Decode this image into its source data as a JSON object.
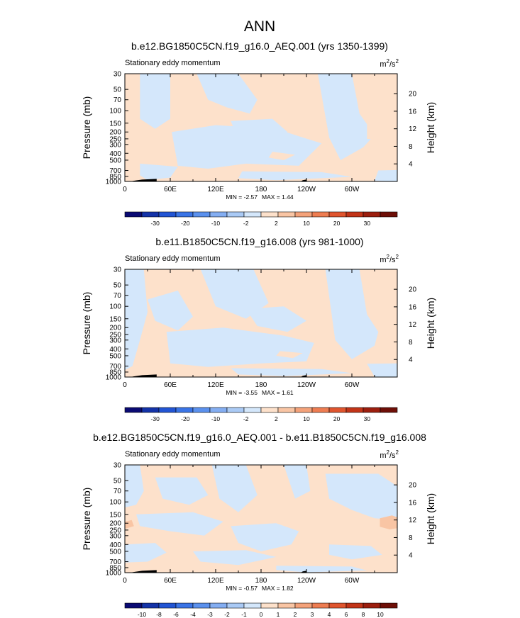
{
  "page_title": "ANN",
  "chart_data": [
    {
      "type": "heatmap",
      "title": "b.e12.BG1850C5CN.f19_g16.0_AEQ.001 (yrs 1350-1399)",
      "left_string": "Stationary eddy momentum",
      "units": {
        "base": "m",
        "sup1": "2",
        "mid": "/s",
        "sup2": "2"
      },
      "ylabel": "Pressure (mb)",
      "ylabel_right": "Height (km)",
      "x_ticks": [
        "0",
        "60E",
        "120E",
        "180",
        "120W",
        "60W"
      ],
      "x_tick_lon": [
        0,
        60,
        120,
        180,
        240,
        300
      ],
      "xlim": [
        0,
        360
      ],
      "y_ticks": [
        "30",
        "50",
        "70",
        "100",
        "150",
        "200",
        "250",
        "300",
        "400",
        "500",
        "700",
        "850",
        "1000"
      ],
      "y_tick_p": [
        30,
        50,
        70,
        100,
        150,
        200,
        250,
        300,
        400,
        500,
        700,
        850,
        1000
      ],
      "ylim": [
        30,
        1000
      ],
      "height_ticks": [
        "20",
        "16",
        "12",
        "8",
        "4"
      ],
      "height_tick_km": [
        20,
        16,
        12,
        8,
        4
      ],
      "min": "-2.57",
      "max": "1.44",
      "stats_text": {
        "min_label": "MIN = ",
        "min": "-2.57",
        "max_label": "MAX = ",
        "max": "1.44"
      },
      "colorbar_labels": [
        "-30",
        "-20",
        "-10",
        "-2",
        "2",
        "10",
        "20",
        "30"
      ],
      "colors": [
        "#0a0a73",
        "#1433a8",
        "#2255d4",
        "#3a74e6",
        "#5b91ee",
        "#84aef2",
        "#aacaf5",
        "#d4e7fb",
        "#fde1cb",
        "#f9c5a4",
        "#f4a27a",
        "#ee7d52",
        "#e0552e",
        "#c23418",
        "#9c1e0e",
        "#6e0f07"
      ],
      "cool_fill": "#d4e7fb",
      "warm_fill": "#fde1cb",
      "terrain": [
        {
          "lon": [
            10,
            42
          ],
          "p": 940
        },
        {
          "lon": [
            232,
            240
          ],
          "p": 960
        }
      ],
      "blobs_cool": [
        [
          [
            20,
            30
          ],
          [
            60,
            30
          ],
          [
            60,
            130
          ],
          [
            40,
            180
          ],
          [
            20,
            130
          ]
        ],
        [
          [
            62,
            200
          ],
          [
            120,
            160
          ],
          [
            200,
            180
          ],
          [
            230,
            230
          ],
          [
            260,
            290
          ],
          [
            230,
            600
          ],
          [
            160,
            560
          ],
          [
            110,
            660
          ],
          [
            70,
            600
          ]
        ],
        [
          [
            95,
            30
          ],
          [
            150,
            30
          ],
          [
            175,
            70
          ],
          [
            165,
            110
          ],
          [
            135,
            90
          ],
          [
            110,
            70
          ]
        ],
        [
          [
            140,
            140
          ],
          [
            195,
            130
          ],
          [
            215,
            200
          ],
          [
            175,
            240
          ],
          [
            145,
            190
          ]
        ],
        [
          [
            255,
            30
          ],
          [
            300,
            30
          ],
          [
            310,
            110
          ],
          [
            330,
            220
          ],
          [
            315,
            330
          ],
          [
            285,
            500
          ],
          [
            270,
            240
          ]
        ],
        [
          [
            155,
            720
          ],
          [
            260,
            740
          ],
          [
            300,
            860
          ],
          [
            200,
            960
          ],
          [
            150,
            900
          ]
        ],
        [
          [
            20,
            560
          ],
          [
            70,
            620
          ],
          [
            60,
            880
          ],
          [
            30,
            960
          ],
          [
            20,
            820
          ]
        ],
        [
          [
            335,
            700
          ],
          [
            360,
            690
          ],
          [
            360,
            1000
          ],
          [
            330,
            980
          ]
        ]
      ],
      "blobs_warm": [
        [
          [
            230,
            60
          ],
          [
            250,
            90
          ],
          [
            240,
            130
          ],
          [
            225,
            110
          ]
        ],
        [
          [
            195,
            380
          ],
          [
            225,
            420
          ],
          [
            210,
            500
          ],
          [
            190,
            460
          ]
        ],
        [
          [
            320,
            140
          ],
          [
            345,
            160
          ],
          [
            345,
            260
          ],
          [
            320,
            250
          ]
        ]
      ]
    },
    {
      "type": "heatmap",
      "title": "b.e11.B1850C5CN.f19_g16.008 (yrs 981-1000)",
      "left_string": "Stationary eddy momentum",
      "units": {
        "base": "m",
        "sup1": "2",
        "mid": "/s",
        "sup2": "2"
      },
      "ylabel": "Pressure (mb)",
      "ylabel_right": "Height (km)",
      "x_ticks": [
        "0",
        "60E",
        "120E",
        "180",
        "120W",
        "60W"
      ],
      "x_tick_lon": [
        0,
        60,
        120,
        180,
        240,
        300
      ],
      "xlim": [
        0,
        360
      ],
      "y_ticks": [
        "30",
        "50",
        "70",
        "100",
        "150",
        "200",
        "250",
        "300",
        "400",
        "500",
        "700",
        "850",
        "1000"
      ],
      "y_tick_p": [
        30,
        50,
        70,
        100,
        150,
        200,
        250,
        300,
        400,
        500,
        700,
        850,
        1000
      ],
      "ylim": [
        30,
        1000
      ],
      "height_ticks": [
        "20",
        "16",
        "12",
        "8",
        "4"
      ],
      "height_tick_km": [
        20,
        16,
        12,
        8,
        4
      ],
      "min": "-3.55",
      "max": "1.61",
      "stats_text": {
        "min_label": "MIN = ",
        "min": "-3.55",
        "max_label": "MAX = ",
        "max": "1.61"
      },
      "colorbar_labels": [
        "-30",
        "-20",
        "-10",
        "-2",
        "2",
        "10",
        "20",
        "30"
      ],
      "colors": [
        "#0a0a73",
        "#1433a8",
        "#2255d4",
        "#3a74e6",
        "#5b91ee",
        "#84aef2",
        "#aacaf5",
        "#d4e7fb",
        "#fde1cb",
        "#f9c5a4",
        "#f4a27a",
        "#ee7d52",
        "#e0552e",
        "#c23418",
        "#9c1e0e",
        "#6e0f07"
      ],
      "cool_fill": "#d4e7fb",
      "warm_fill": "#fde1cb",
      "terrain": [
        {
          "lon": [
            10,
            42
          ],
          "p": 940
        },
        {
          "lon": [
            232,
            240
          ],
          "p": 960
        }
      ],
      "blobs_cool": [
        [
          [
            0,
            30
          ],
          [
            25,
            30
          ],
          [
            30,
            120
          ],
          [
            20,
            300
          ],
          [
            10,
            700
          ],
          [
            0,
            800
          ]
        ],
        [
          [
            30,
            80
          ],
          [
            70,
            60
          ],
          [
            90,
            140
          ],
          [
            70,
            220
          ],
          [
            40,
            160
          ]
        ],
        [
          [
            100,
            30
          ],
          [
            170,
            30
          ],
          [
            190,
            90
          ],
          [
            160,
            150
          ],
          [
            120,
            100
          ]
        ],
        [
          [
            55,
            230
          ],
          [
            130,
            200
          ],
          [
            210,
            260
          ],
          [
            250,
            330
          ],
          [
            240,
            600
          ],
          [
            180,
            640
          ],
          [
            110,
            720
          ],
          [
            60,
            640
          ]
        ],
        [
          [
            160,
            110
          ],
          [
            210,
            100
          ],
          [
            240,
            160
          ],
          [
            215,
            230
          ],
          [
            175,
            190
          ]
        ],
        [
          [
            265,
            30
          ],
          [
            310,
            30
          ],
          [
            320,
            130
          ],
          [
            335,
            230
          ],
          [
            330,
            360
          ],
          [
            300,
            560
          ],
          [
            278,
            300
          ]
        ],
        [
          [
            140,
            750
          ],
          [
            260,
            770
          ],
          [
            300,
            880
          ],
          [
            210,
            970
          ],
          [
            150,
            920
          ]
        ],
        [
          [
            320,
            650
          ],
          [
            360,
            640
          ],
          [
            360,
            1000
          ],
          [
            330,
            990
          ]
        ]
      ],
      "blobs_warm": [
        [
          [
            240,
            80
          ],
          [
            262,
            110
          ],
          [
            255,
            170
          ],
          [
            238,
            150
          ]
        ],
        [
          [
            205,
            430
          ],
          [
            235,
            460
          ],
          [
            222,
            540
          ],
          [
            200,
            500
          ]
        ]
      ]
    },
    {
      "type": "heatmap",
      "title": "b.e12.BG1850C5CN.f19_g16.0_AEQ.001 - b.e11.B1850C5CN.f19_g16.008",
      "left_string": "Stationary eddy momentum",
      "units": {
        "base": "m",
        "sup1": "2",
        "mid": "/s",
        "sup2": "2"
      },
      "ylabel": "Pressure (mb)",
      "ylabel_right": "Height (km)",
      "x_ticks": [
        "0",
        "60E",
        "120E",
        "180",
        "120W",
        "60W"
      ],
      "x_tick_lon": [
        0,
        60,
        120,
        180,
        240,
        300
      ],
      "xlim": [
        0,
        360
      ],
      "y_ticks": [
        "30",
        "50",
        "70",
        "100",
        "150",
        "200",
        "250",
        "300",
        "400",
        "500",
        "700",
        "850",
        "1000"
      ],
      "y_tick_p": [
        30,
        50,
        70,
        100,
        150,
        200,
        250,
        300,
        400,
        500,
        700,
        850,
        1000
      ],
      "ylim": [
        30,
        1000
      ],
      "height_ticks": [
        "20",
        "16",
        "12",
        "8",
        "4"
      ],
      "height_tick_km": [
        20,
        16,
        12,
        8,
        4
      ],
      "min": "-0.57",
      "max": "1.82",
      "stats_text": {
        "min_label": "MIN = ",
        "min": "-0.57",
        "max_label": "MAX = ",
        "max": "1.82"
      },
      "colorbar_labels": [
        "-10",
        "-8",
        "-6",
        "-4",
        "-3",
        "-2",
        "-1",
        "0",
        "1",
        "2",
        "3",
        "4",
        "6",
        "8",
        "10"
      ],
      "colors": [
        "#0a0a73",
        "#1433a8",
        "#2255d4",
        "#3a74e6",
        "#5b91ee",
        "#84aef2",
        "#aacaf5",
        "#d4e7fb",
        "#fde1cb",
        "#f9c5a4",
        "#f4a27a",
        "#ee7d52",
        "#e0552e",
        "#c23418",
        "#9c1e0e",
        "#6e0f07"
      ],
      "cool_fill": "#d4e7fb",
      "warm_fill": "#fde1cb",
      "highlight_fill": "#f9c5a4",
      "terrain": [
        {
          "lon": [
            10,
            42
          ],
          "p": 940
        },
        {
          "lon": [
            232,
            240
          ],
          "p": 960
        }
      ],
      "blobs_cool": [
        [
          [
            0,
            30
          ],
          [
            20,
            30
          ],
          [
            25,
            70
          ],
          [
            15,
            110
          ],
          [
            0,
            120
          ]
        ],
        [
          [
            40,
            45
          ],
          [
            95,
            45
          ],
          [
            110,
            80
          ],
          [
            85,
            110
          ],
          [
            50,
            90
          ]
        ],
        [
          [
            15,
            150
          ],
          [
            90,
            140
          ],
          [
            130,
            190
          ],
          [
            105,
            300
          ],
          [
            60,
            260
          ],
          [
            20,
            220
          ]
        ],
        [
          [
            115,
            30
          ],
          [
            160,
            30
          ],
          [
            175,
            80
          ],
          [
            150,
            140
          ],
          [
            125,
            90
          ]
        ],
        [
          [
            140,
            220
          ],
          [
            200,
            200
          ],
          [
            230,
            260
          ],
          [
            220,
            400
          ],
          [
            180,
            500
          ],
          [
            150,
            380
          ]
        ],
        [
          [
            210,
            30
          ],
          [
            240,
            30
          ],
          [
            245,
            70
          ],
          [
            225,
            90
          ]
        ],
        [
          [
            265,
            40
          ],
          [
            335,
            40
          ],
          [
            360,
            60
          ],
          [
            360,
            180
          ],
          [
            330,
            170
          ],
          [
            300,
            130
          ],
          [
            270,
            90
          ]
        ],
        [
          [
            90,
            500
          ],
          [
            160,
            480
          ],
          [
            200,
            600
          ],
          [
            150,
            780
          ],
          [
            100,
            700
          ]
        ],
        [
          [
            0,
            400
          ],
          [
            40,
            380
          ],
          [
            55,
            520
          ],
          [
            30,
            700
          ],
          [
            0,
            720
          ]
        ],
        [
          [
            270,
            400
          ],
          [
            325,
            420
          ],
          [
            340,
            560
          ],
          [
            300,
            650
          ],
          [
            270,
            560
          ]
        ],
        [
          [
            200,
            800
          ],
          [
            300,
            820
          ],
          [
            320,
            930
          ],
          [
            240,
            990
          ],
          [
            200,
            920
          ]
        ]
      ],
      "blobs_warm": [],
      "blobs_highlight": [
        [
          [
            0,
            190
          ],
          [
            9,
            180
          ],
          [
            12,
            220
          ],
          [
            0,
            240
          ]
        ],
        [
          [
            337,
            170
          ],
          [
            353,
            155
          ],
          [
            360,
            165
          ],
          [
            360,
            235
          ],
          [
            350,
            245
          ],
          [
            337,
            225
          ]
        ]
      ]
    }
  ]
}
